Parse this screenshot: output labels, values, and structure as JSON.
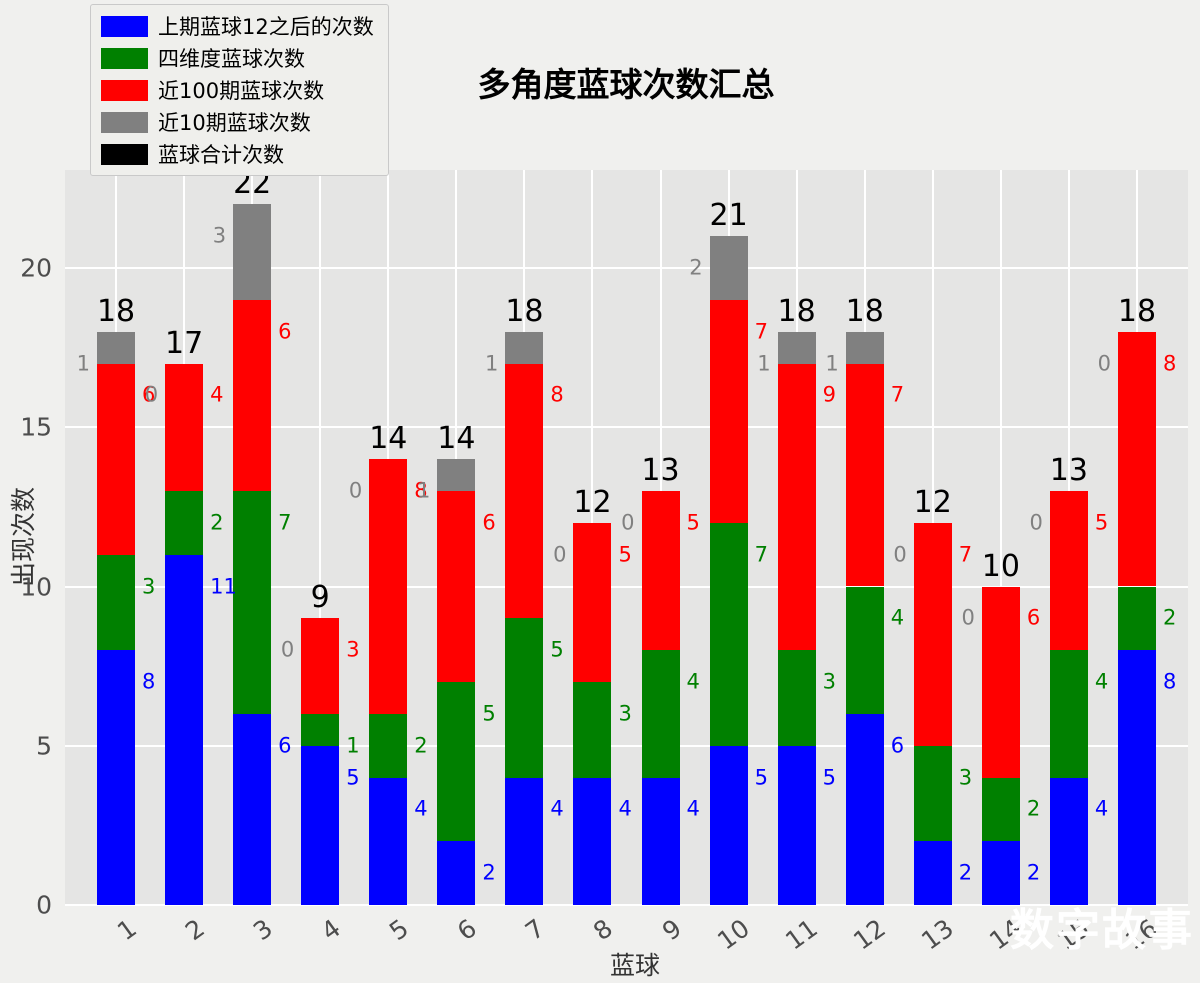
{
  "title": "多角度蓝球次数汇总",
  "watermark": "数字故事",
  "legend": {
    "items": [
      {
        "label": "上期蓝球12之后的次数",
        "color": "#0000ff"
      },
      {
        "label": "四维度蓝球次数",
        "color": "#008000"
      },
      {
        "label": "近100期蓝球次数",
        "color": "#ff0000"
      },
      {
        "label": "近10期蓝球次数",
        "color": "#808080"
      },
      {
        "label": "蓝球合计次数",
        "color": "#000000"
      }
    ]
  },
  "chart_data": {
    "type": "bar",
    "stacked": true,
    "title": "多角度蓝球次数汇总",
    "xlabel": "蓝球",
    "ylabel": "出现次数",
    "categories": [
      "1",
      "2",
      "3",
      "4",
      "5",
      "6",
      "7",
      "8",
      "9",
      "10",
      "11",
      "12",
      "13",
      "14",
      "15",
      "16"
    ],
    "yticks": [
      0,
      5,
      10,
      15,
      20
    ],
    "ylim": [
      0,
      23.1
    ],
    "grid": true,
    "legend_position": "upper left",
    "series": [
      {
        "name": "上期蓝球12之后的次数",
        "color": "#0000ff",
        "label_side": "right",
        "values": [
          8,
          11,
          6,
          5,
          4,
          2,
          4,
          4,
          4,
          5,
          5,
          6,
          2,
          2,
          4,
          8
        ]
      },
      {
        "name": "四维度蓝球次数",
        "color": "#008000",
        "label_side": "right",
        "values": [
          3,
          2,
          7,
          1,
          2,
          5,
          5,
          3,
          4,
          7,
          3,
          4,
          3,
          2,
          4,
          2
        ]
      },
      {
        "name": "近100期蓝球次数",
        "color": "#ff0000",
        "label_side": "right",
        "values": [
          6,
          4,
          6,
          3,
          8,
          6,
          8,
          5,
          5,
          7,
          9,
          7,
          7,
          6,
          5,
          8
        ]
      },
      {
        "name": "近10期蓝球次数",
        "color": "#808080",
        "label_side": "left",
        "values": [
          1,
          0,
          3,
          0,
          0,
          1,
          1,
          0,
          0,
          2,
          1,
          1,
          0,
          0,
          0,
          0
        ]
      }
    ],
    "totals": {
      "name": "蓝球合计次数",
      "color": "#000000",
      "values": [
        18,
        17,
        22,
        9,
        14,
        14,
        18,
        12,
        13,
        21,
        18,
        18,
        12,
        10,
        13,
        18
      ]
    }
  }
}
